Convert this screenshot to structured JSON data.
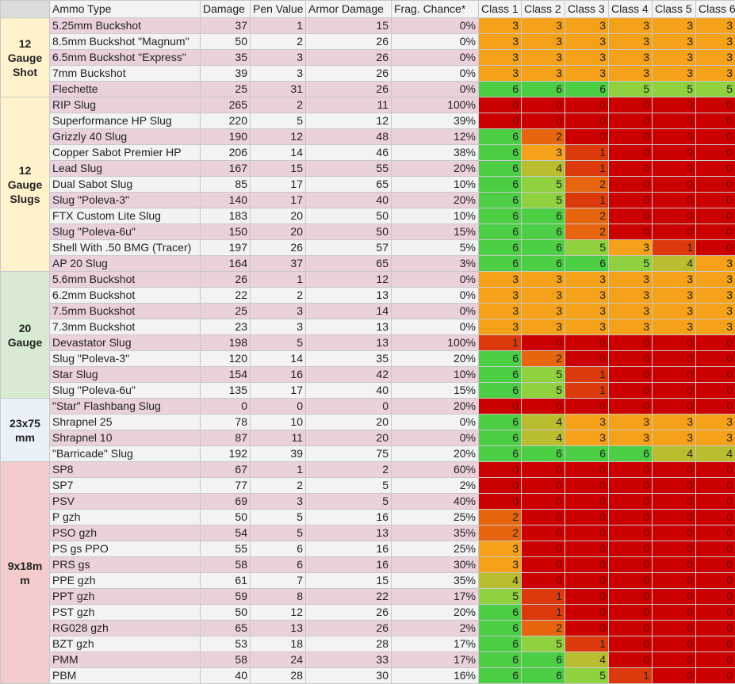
{
  "header": [
    "Ammo Type",
    "Damage",
    "Pen Value",
    "Armor Damage",
    "Frag. Chance*",
    "Class 1",
    "Class 2",
    "Class 3",
    "Class 4",
    "Class 5",
    "Class 6"
  ],
  "class_colors": [
    "#cc0000",
    "#dc3a0d",
    "#e8650f",
    "#f6a11a",
    "#b9bd30",
    "#8fd13f",
    "#4ccf45"
  ],
  "groups": [
    {
      "label": "12 Gauge Shot",
      "color": "#fff2cc",
      "rows": [
        [
          "5.25mm Buckshot",
          37,
          1,
          15,
          "0%",
          3,
          3,
          3,
          3,
          3,
          3
        ],
        [
          "8.5mm Buckshot \"Magnum\"",
          50,
          2,
          26,
          "0%",
          3,
          3,
          3,
          3,
          3,
          3
        ],
        [
          "6.5mm Buckshot \"Express\"",
          35,
          3,
          26,
          "0%",
          3,
          3,
          3,
          3,
          3,
          3
        ],
        [
          "7mm Buckshot",
          39,
          3,
          26,
          "0%",
          3,
          3,
          3,
          3,
          3,
          3
        ],
        [
          "Flechette",
          25,
          31,
          26,
          "0%",
          6,
          6,
          6,
          5,
          5,
          5
        ]
      ]
    },
    {
      "label": "12 Gauge Slugs",
      "color": "#fff2cc",
      "rows": [
        [
          "RIP Slug",
          265,
          2,
          11,
          "100%",
          0,
          0,
          0,
          0,
          0,
          0
        ],
        [
          "Superformance HP Slug",
          220,
          5,
          12,
          "39%",
          0,
          0,
          0,
          0,
          0,
          0
        ],
        [
          "Grizzly 40 Slug",
          190,
          12,
          48,
          "12%",
          6,
          2,
          0,
          0,
          0,
          0
        ],
        [
          "Copper Sabot Premier HP",
          206,
          14,
          46,
          "38%",
          6,
          3,
          1,
          0,
          0,
          0
        ],
        [
          "Lead Slug",
          167,
          15,
          55,
          "20%",
          6,
          4,
          1,
          0,
          0,
          0
        ],
        [
          "Dual Sabot Slug",
          85,
          17,
          65,
          "10%",
          6,
          5,
          2,
          0,
          0,
          0
        ],
        [
          "Slug \"Poleva-3\"",
          140,
          17,
          40,
          "20%",
          6,
          5,
          1,
          0,
          0,
          0
        ],
        [
          "FTX Custom Lite Slug",
          183,
          20,
          50,
          "10%",
          6,
          6,
          2,
          0,
          0,
          0
        ],
        [
          "Slug \"Poleva-6u\"",
          150,
          20,
          50,
          "15%",
          6,
          6,
          2,
          0,
          0,
          0
        ],
        [
          "Shell With .50 BMG (Tracer)",
          197,
          26,
          57,
          "5%",
          6,
          6,
          5,
          3,
          1,
          0
        ],
        [
          "AP 20 Slug",
          164,
          37,
          65,
          "3%",
          6,
          6,
          6,
          5,
          4,
          3
        ]
      ]
    },
    {
      "label": "20 Gauge",
      "color": "#d9ead3",
      "rows": [
        [
          "5.6mm Buckshot",
          26,
          1,
          12,
          "0%",
          3,
          3,
          3,
          3,
          3,
          3
        ],
        [
          "6.2mm Buckshot",
          22,
          2,
          13,
          "0%",
          3,
          3,
          3,
          3,
          3,
          3
        ],
        [
          "7.5mm Buckshot",
          25,
          3,
          14,
          "0%",
          3,
          3,
          3,
          3,
          3,
          3
        ],
        [
          "7.3mm Buckshot",
          23,
          3,
          13,
          "0%",
          3,
          3,
          3,
          3,
          3,
          3
        ],
        [
          "Devastator Slug",
          198,
          5,
          13,
          "100%",
          1,
          0,
          0,
          0,
          0,
          0
        ],
        [
          "Slug \"Poleva-3\"",
          120,
          14,
          35,
          "20%",
          6,
          2,
          0,
          0,
          0,
          0
        ],
        [
          "Star Slug",
          154,
          16,
          42,
          "10%",
          6,
          5,
          1,
          0,
          0,
          0
        ],
        [
          "Slug \"Poleva-6u\"",
          135,
          17,
          40,
          "15%",
          6,
          5,
          1,
          0,
          0,
          0
        ]
      ]
    },
    {
      "label": "23x75 mm",
      "color": "#eaf1f8",
      "rows": [
        [
          "\"Star\" Flashbang Slug",
          0,
          0,
          0,
          "20%",
          0,
          0,
          0,
          0,
          0,
          0
        ],
        [
          "Shrapnel 25",
          78,
          10,
          20,
          "0%",
          6,
          4,
          3,
          3,
          3,
          3
        ],
        [
          "Shrapnel 10",
          87,
          11,
          20,
          "0%",
          6,
          4,
          3,
          3,
          3,
          3
        ],
        [
          "\"Barricade\" Slug",
          192,
          39,
          75,
          "20%",
          6,
          6,
          6,
          6,
          4,
          4
        ]
      ]
    },
    {
      "label": "9x18mm",
      "color": "#f4cccc",
      "rows": [
        [
          "SP8",
          67,
          1,
          2,
          "60%",
          0,
          0,
          0,
          0,
          0,
          0
        ],
        [
          "SP7",
          77,
          2,
          5,
          "2%",
          0,
          0,
          0,
          0,
          0,
          0
        ],
        [
          "PSV",
          69,
          3,
          5,
          "40%",
          0,
          0,
          0,
          0,
          0,
          0
        ],
        [
          "P gzh",
          50,
          5,
          16,
          "25%",
          2,
          0,
          0,
          0,
          0,
          0
        ],
        [
          "PSO gzh",
          54,
          5,
          13,
          "35%",
          2,
          0,
          0,
          0,
          0,
          0
        ],
        [
          "PS gs PPO",
          55,
          6,
          16,
          "25%",
          3,
          0,
          0,
          0,
          0,
          0
        ],
        [
          "PRS gs",
          58,
          6,
          16,
          "30%",
          3,
          0,
          0,
          0,
          0,
          0
        ],
        [
          "PPE gzh",
          61,
          7,
          15,
          "35%",
          4,
          0,
          0,
          0,
          0,
          0
        ],
        [
          "PPT gzh",
          59,
          8,
          22,
          "17%",
          5,
          1,
          0,
          0,
          0,
          0
        ],
        [
          "PST gzh",
          50,
          12,
          26,
          "20%",
          6,
          1,
          0,
          0,
          0,
          0
        ],
        [
          "RG028 gzh",
          65,
          13,
          26,
          "2%",
          6,
          2,
          0,
          0,
          0,
          0
        ],
        [
          "BZT gzh",
          53,
          18,
          28,
          "17%",
          6,
          5,
          1,
          0,
          0,
          0
        ],
        [
          "PMM",
          58,
          24,
          33,
          "17%",
          6,
          6,
          4,
          0,
          0,
          0
        ],
        [
          "PBM",
          40,
          28,
          30,
          "16%",
          6,
          6,
          5,
          1,
          0,
          0
        ]
      ]
    }
  ]
}
